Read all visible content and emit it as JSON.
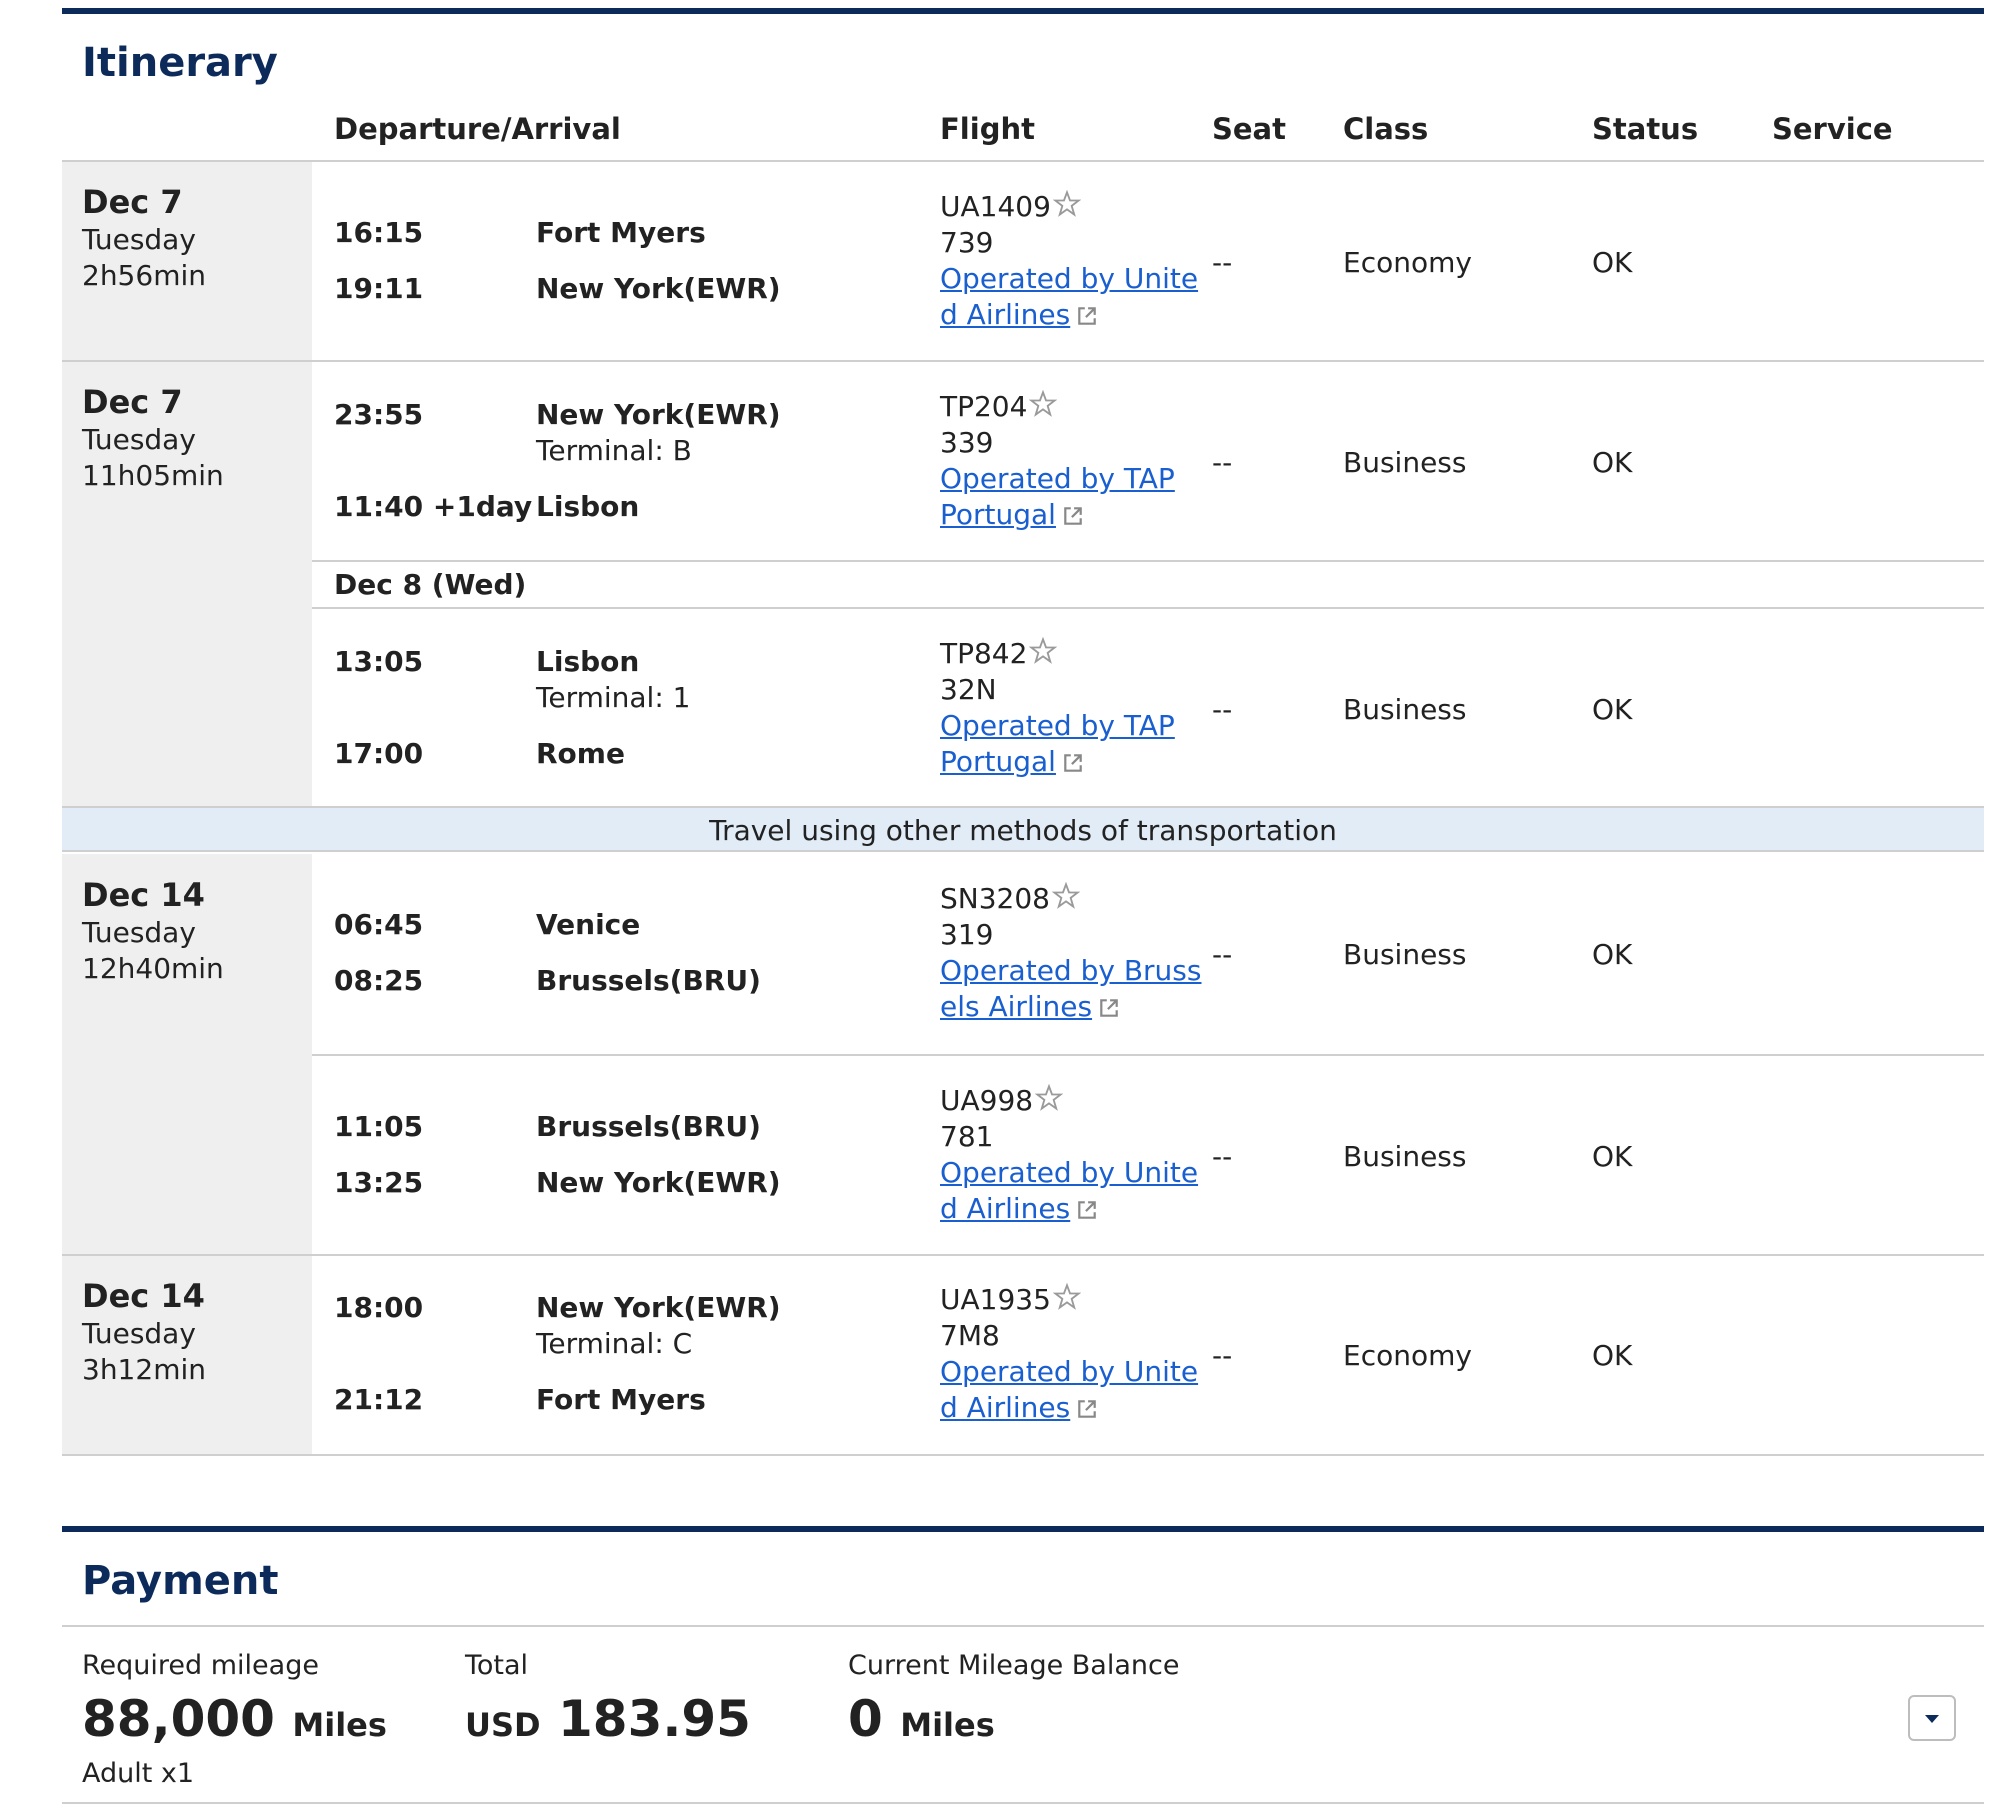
{
  "itinerary": {
    "title": "Itinerary",
    "columns": {
      "departure_arrival": "Departure/Arrival",
      "flight": "Flight",
      "seat": "Seat",
      "class": "Class",
      "status": "Status",
      "service": "Service"
    },
    "groups": [
      {
        "date": "Dec 7",
        "day": "Tuesday",
        "duration": "2h56min"
      },
      {
        "date": "Dec 7",
        "day": "Tuesday",
        "duration": "11h05min"
      },
      {
        "date": "Dec 14",
        "day": "Tuesday",
        "duration": "12h40min"
      },
      {
        "date": "Dec 14",
        "day": "Tuesday",
        "duration": "3h12min"
      }
    ],
    "segments": [
      {
        "dep_time": "16:15",
        "dep_city": "Fort Myers",
        "dep_terminal": "",
        "arr_time": "19:11",
        "arr_city": "New York(EWR)",
        "flight": "UA1409",
        "aircraft": "739",
        "operator_line1": "Operated by Unite",
        "operator_line2": "d Airlines",
        "seat": "--",
        "class": "Economy",
        "status": "OK"
      },
      {
        "dep_time": "23:55",
        "dep_city": "New York(EWR)",
        "dep_terminal": "Terminal: B",
        "arr_time": "11:40 +1day",
        "arr_city": "Lisbon",
        "flight": "TP204",
        "aircraft": "339",
        "operator_line1": "Operated by TAP",
        "operator_line2": "Portugal",
        "seat": "--",
        "class": "Business",
        "status": "OK"
      },
      {
        "dep_time": "13:05",
        "dep_city": "Lisbon",
        "dep_terminal": "Terminal: 1",
        "arr_time": "17:00",
        "arr_city": "Rome",
        "flight": "TP842",
        "aircraft": "32N",
        "operator_line1": "Operated by TAP",
        "operator_line2": "Portugal",
        "seat": "--",
        "class": "Business",
        "status": "OK"
      },
      {
        "dep_time": "06:45",
        "dep_city": "Venice",
        "dep_terminal": "",
        "arr_time": "08:25",
        "arr_city": "Brussels(BRU)",
        "flight": "SN3208",
        "aircraft": "319",
        "operator_line1": "Operated by Bruss",
        "operator_line2": "els Airlines",
        "seat": "--",
        "class": "Business",
        "status": "OK"
      },
      {
        "dep_time": "11:05",
        "dep_city": "Brussels(BRU)",
        "dep_terminal": "",
        "arr_time": "13:25",
        "arr_city": "New York(EWR)",
        "flight": "UA998",
        "aircraft": "781",
        "operator_line1": "Operated by Unite",
        "operator_line2": "d Airlines",
        "seat": "--",
        "class": "Business",
        "status": "OK"
      },
      {
        "dep_time": "18:00",
        "dep_city": "New York(EWR)",
        "dep_terminal": "Terminal: C",
        "arr_time": "21:12",
        "arr_city": "Fort Myers",
        "flight": "UA1935",
        "aircraft": "7M8",
        "operator_line1": "Operated by Unite",
        "operator_line2": "d Airlines",
        "seat": "--",
        "class": "Economy",
        "status": "OK"
      }
    ],
    "stopover_date": "Dec 8 (Wed)",
    "other_transport": "Travel using other methods of transportation"
  },
  "payment": {
    "title": "Payment",
    "required_label": "Required mileage",
    "required_value": "88,000",
    "required_unit": "Miles",
    "passengers": "Adult x1",
    "total_label": "Total",
    "total_currency": "USD",
    "total_value": "183.95",
    "balance_label": "Current Mileage Balance",
    "balance_value": "0",
    "balance_unit": "Miles"
  },
  "icons": {
    "star": "star-alliance-icon",
    "external": "external-link-icon",
    "dropdown": "chevron-down-icon"
  },
  "colors": {
    "brand": "#0c2b5b",
    "link": "#1a5fd0",
    "date_column": "#efefef",
    "other_transport_band": "#e1ecf7"
  }
}
